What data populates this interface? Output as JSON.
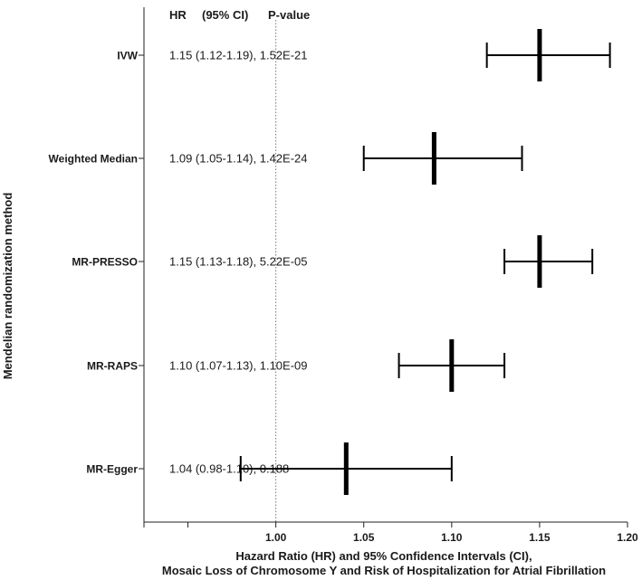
{
  "chart_data": {
    "type": "forest",
    "y_axis_label": "Mendelian randomization method",
    "x_axis_label_line1": "Hazard Ratio (HR) and 95% Confidence Intervals (CI),",
    "x_axis_label_line2": "Mosaic Loss of Chromosome Y and Risk of Hospitalization for Atrial Fibrillation",
    "header": {
      "hr": "HR",
      "ci": "(95% CI)",
      "p": "P-value"
    },
    "xlim": [
      0.925,
      1.2
    ],
    "reference_line": 1.0,
    "x_ticks": [
      {
        "value": 0.925,
        "label": ""
      },
      {
        "value": 0.95,
        "label": ""
      },
      {
        "value": 1.0,
        "label": "1.00"
      },
      {
        "value": 1.05,
        "label": "1.05"
      },
      {
        "value": 1.1,
        "label": "1.10"
      },
      {
        "value": 1.15,
        "label": "1.15"
      },
      {
        "value": 1.2,
        "label": "1.20"
      }
    ],
    "rows": [
      {
        "method": "IVW",
        "hr": 1.15,
        "lower": 1.12,
        "upper": 1.19,
        "text": "1.15 (1.12-1.19), 1.52E-21"
      },
      {
        "method": "Weighted Median",
        "hr": 1.09,
        "lower": 1.05,
        "upper": 1.14,
        "text": "1.09 (1.05-1.14), 1.42E-24"
      },
      {
        "method": "MR-PRESSO",
        "hr": 1.15,
        "lower": 1.13,
        "upper": 1.18,
        "text": "1.15 (1.13-1.18), 5.22E-05"
      },
      {
        "method": "MR-RAPS",
        "hr": 1.1,
        "lower": 1.07,
        "upper": 1.13,
        "text": "1.10 (1.07-1.13), 1.10E-09"
      },
      {
        "method": "MR-Egger",
        "hr": 1.04,
        "lower": 0.98,
        "upper": 1.1,
        "text": "1.04 (0.98-1.10), 0.188"
      }
    ]
  }
}
